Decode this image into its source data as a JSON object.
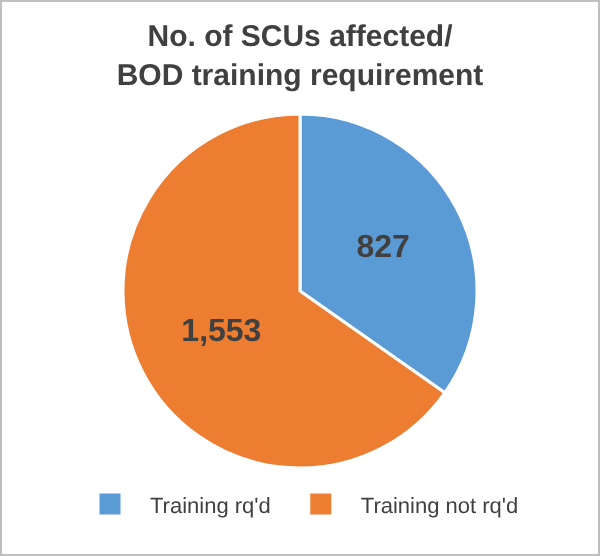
{
  "chart_data": {
    "type": "pie",
    "title": "No. of SCUs affected/\nBOD training requirement",
    "categories": [
      "Training rq'd",
      "Training not rq'd"
    ],
    "values": [
      827,
      1553
    ],
    "value_labels": [
      "827",
      "1,553"
    ],
    "colors": [
      "#5b9bd5",
      "#ed7d31"
    ],
    "legend": "bottom"
  }
}
